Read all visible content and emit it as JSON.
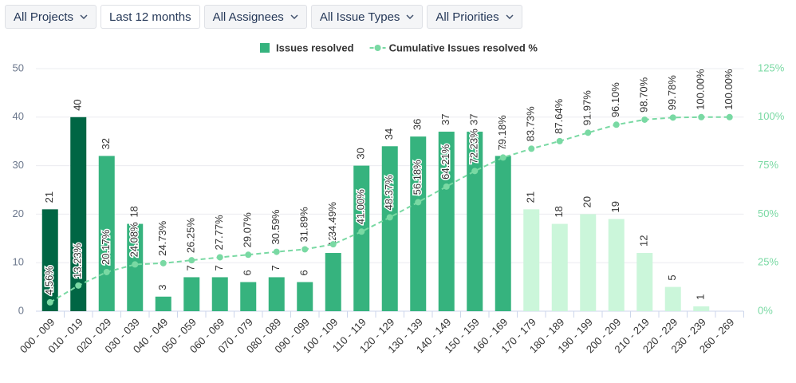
{
  "filters": [
    "All Projects",
    "Last 12 months",
    "All Assignees",
    "All Issue Types",
    "All Priorities"
  ],
  "chart_data": {
    "type": "combo",
    "categories": [
      "000 - 009",
      "010 - 019",
      "020 - 029",
      "030 - 039",
      "040 - 049",
      "050 - 059",
      "060 - 069",
      "070 - 079",
      "080 - 089",
      "090 - 099",
      "100 - 109",
      "110 - 119",
      "120 - 129",
      "130 - 139",
      "140 - 149",
      "150 - 159",
      "160 - 169",
      "170 - 179",
      "180 - 189",
      "190 - 199",
      "200 - 209",
      "210 - 219",
      "220 - 229",
      "230 - 239",
      "260 - 269"
    ],
    "series": [
      {
        "name": "Issues resolved",
        "type": "bar",
        "color": "#36b37e",
        "colors": [
          "#006644",
          "#006644",
          "#36b37e",
          "#36b37e",
          "#36b37e",
          "#36b37e",
          "#36b37e",
          "#36b37e",
          "#36b37e",
          "#36b37e",
          "#36b37e",
          "#36b37e",
          "#36b37e",
          "#36b37e",
          "#36b37e",
          "#36b37e",
          "#36b37e",
          "#cbf6da",
          "#cbf6da",
          "#cbf6da",
          "#cbf6da",
          "#cbf6da",
          "#cbf6da",
          "#cbf6da",
          "#cbf6da"
        ],
        "values": [
          21,
          40,
          32,
          18,
          3,
          7,
          7,
          6,
          7,
          6,
          12,
          30,
          34,
          36,
          37,
          37,
          32,
          21,
          18,
          20,
          19,
          12,
          5,
          1,
          null
        ]
      },
      {
        "name": "Cumulative Issues resolved %",
        "type": "line",
        "axis": "y2",
        "color": "#79d9a3",
        "values": [
          4.56,
          13.23,
          20.17,
          24.08,
          24.73,
          26.25,
          27.77,
          29.07,
          30.59,
          31.89,
          34.49,
          41.0,
          48.37,
          56.18,
          64.21,
          72.23,
          79.18,
          83.73,
          87.64,
          91.97,
          96.1,
          98.7,
          99.78,
          100.0,
          100.0
        ],
        "value_labels": [
          "4.56%",
          "13.23%",
          "20.17%",
          "24.08%",
          "24.73%",
          "26.25%",
          "27.77%",
          "29.07%",
          "30.59%",
          "31.89%",
          "34.49%",
          "41.00%",
          "48.37%",
          "56.18%",
          "64.21%",
          "72.23%",
          "79.18%",
          "83.73%",
          "87.64%",
          "91.97%",
          "96.10%",
          "98.70%",
          "99.78%",
          "100.00%",
          "100.00%"
        ]
      }
    ],
    "ylim": [
      0,
      50
    ],
    "yticks": [
      0,
      10,
      20,
      30,
      40,
      50
    ],
    "y2lim": [
      0,
      125
    ],
    "y2ticks": [
      {
        "value": 0,
        "label": "0%"
      },
      {
        "value": 25,
        "label": "25%"
      },
      {
        "value": 50,
        "label": "50%"
      },
      {
        "value": 75,
        "label": "75%"
      },
      {
        "value": 100,
        "label": "100%"
      },
      {
        "value": 125,
        "label": "125%"
      }
    ],
    "grid": true
  }
}
